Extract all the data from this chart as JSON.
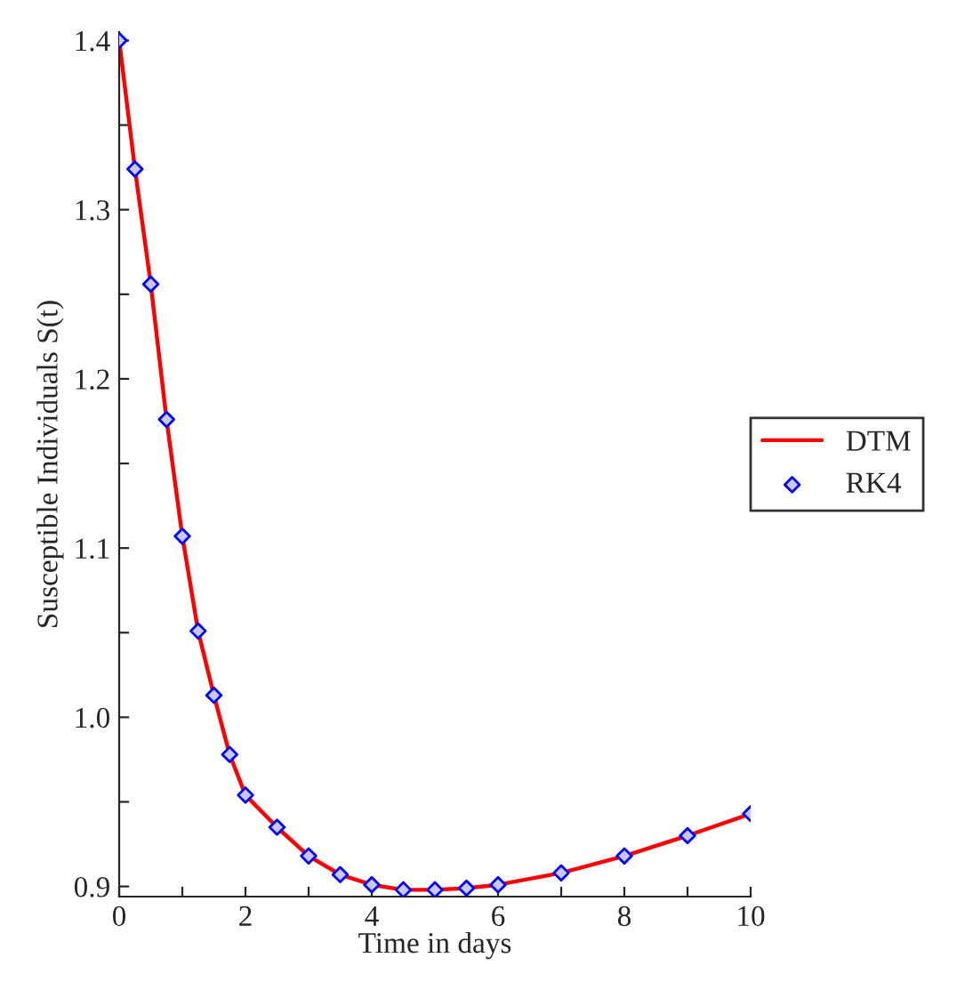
{
  "chart_data": {
    "type": "line",
    "xlabel": "Time in days",
    "ylabel": "Susceptible Individuals S(t)",
    "xlim": [
      0,
      10
    ],
    "ylim": [
      0.894,
      1.405
    ],
    "xticks": [
      0,
      {
        "value": 1,
        "label": null
      },
      2,
      {
        "value": 3,
        "label": null
      },
      4,
      {
        "value": 5,
        "label": null
      },
      6,
      {
        "value": 7,
        "label": null
      },
      8,
      {
        "value": 9,
        "label": null
      },
      10
    ],
    "yticks": [
      {
        "value": 0.9,
        "label": "0.9"
      },
      {
        "value": 0.95,
        "label": null
      },
      {
        "value": 1.0,
        "label": "1.0"
      },
      {
        "value": 1.05,
        "label": null
      },
      1.1,
      {
        "value": 1.15,
        "label": null
      },
      1.2,
      {
        "value": 1.25,
        "label": null
      },
      1.3,
      {
        "value": 1.35,
        "label": null
      },
      1.4
    ],
    "grid": false,
    "legend": "right",
    "series": [
      {
        "name": "DTM",
        "color": "#ff0000",
        "marker": "none",
        "line_style": "solid",
        "x": [
          0,
          0.25,
          0.5,
          0.75,
          1,
          1.25,
          1.5,
          1.75,
          2,
          2.5,
          3,
          3.5,
          4,
          4.5,
          5,
          5.5,
          6,
          7,
          8,
          9,
          10
        ],
        "values": [
          1.4,
          1.324,
          1.256,
          1.176,
          1.107,
          1.051,
          1.013,
          0.978,
          0.954,
          0.935,
          0.918,
          0.907,
          0.901,
          0.898,
          0.898,
          0.899,
          0.901,
          0.908,
          0.918,
          0.93,
          0.943
        ]
      },
      {
        "name": "RK4",
        "type": "scatter",
        "color": "#0000ff",
        "marker": "diamond",
        "x": [
          0,
          0.25,
          0.5,
          0.75,
          1,
          1.25,
          1.5,
          1.75,
          2,
          2.5,
          3,
          3.5,
          4,
          4.5,
          5,
          5.5,
          6,
          7,
          8,
          9,
          10
        ],
        "values": [
          1.4,
          1.324,
          1.256,
          1.176,
          1.107,
          1.051,
          1.013,
          0.978,
          0.954,
          0.935,
          0.918,
          0.907,
          0.901,
          0.898,
          0.898,
          0.899,
          0.901,
          0.908,
          0.918,
          0.93,
          0.943
        ]
      }
    ]
  }
}
